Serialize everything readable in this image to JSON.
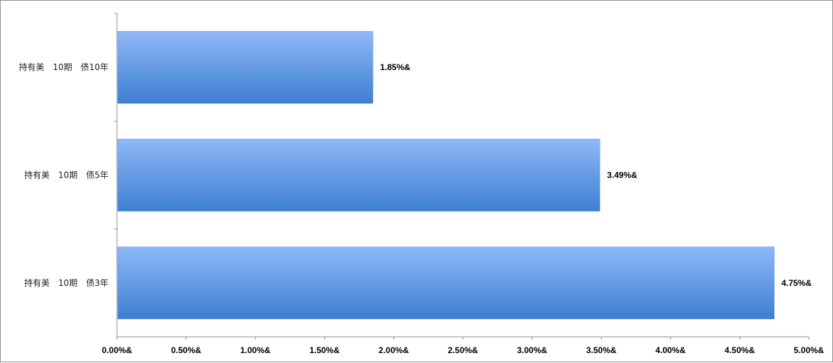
{
  "chart_data": {
    "type": "bar",
    "orientation": "horizontal",
    "categories": [
      "持有美　10期　债10年",
      "持有美　10期　债5年",
      "持有美　10期　债3年"
    ],
    "values": [
      1.85,
      3.49,
      4.75
    ],
    "data_labels": [
      "1.85%&",
      "3.49%&",
      "4.75%&"
    ],
    "x_ticks": [
      "0.00%&",
      "0.50%&",
      "1.00%&",
      "1.50%&",
      "2.00%&",
      "2.50%&",
      "3.00%&",
      "3.50%&",
      "4.00%&",
      "4.50%&",
      "5.00%&"
    ],
    "xlim": [
      0,
      5
    ],
    "tick_step": 0.5,
    "grid": false,
    "legend": "none",
    "bar_color_top": "#8fb8f7",
    "bar_color_bottom": "#3d7fd1",
    "xlabel": "",
    "ylabel": ""
  }
}
